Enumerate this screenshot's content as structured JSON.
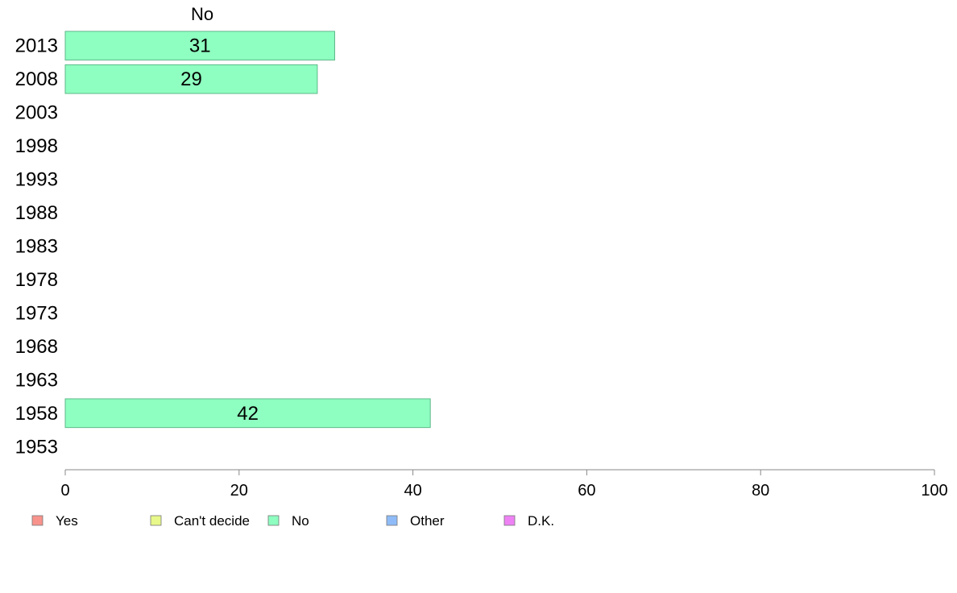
{
  "chart_data": {
    "type": "bar",
    "orientation": "horizontal",
    "stacked": true,
    "title": "",
    "column_header": "No",
    "categories": [
      "2013",
      "2008",
      "2003",
      "1998",
      "1993",
      "1988",
      "1983",
      "1978",
      "1973",
      "1968",
      "1963",
      "1958",
      "1953"
    ],
    "series": [
      {
        "name": "Yes",
        "color": "#f8938c",
        "values": [
          null,
          null,
          null,
          null,
          null,
          null,
          null,
          null,
          null,
          null,
          null,
          null,
          null
        ]
      },
      {
        "name": "Can't decide",
        "color": "#e8f88a",
        "values": [
          null,
          null,
          null,
          null,
          null,
          null,
          null,
          null,
          null,
          null,
          null,
          null,
          null
        ]
      },
      {
        "name": "No",
        "color": "#8effc0",
        "values": [
          31,
          29,
          null,
          null,
          null,
          null,
          null,
          null,
          null,
          null,
          null,
          42,
          null
        ]
      },
      {
        "name": "Other",
        "color": "#8fbcf8",
        "values": [
          null,
          null,
          null,
          null,
          null,
          null,
          null,
          null,
          null,
          null,
          null,
          null,
          null
        ]
      },
      {
        "name": "D.K.",
        "color": "#ee82f4",
        "values": [
          null,
          null,
          null,
          null,
          null,
          null,
          null,
          null,
          null,
          null,
          null,
          null,
          null
        ]
      }
    ],
    "xlim": [
      0,
      100
    ],
    "xticks": [
      0,
      20,
      40,
      60,
      80,
      100
    ],
    "grid": false,
    "legend_position": "bottom"
  }
}
